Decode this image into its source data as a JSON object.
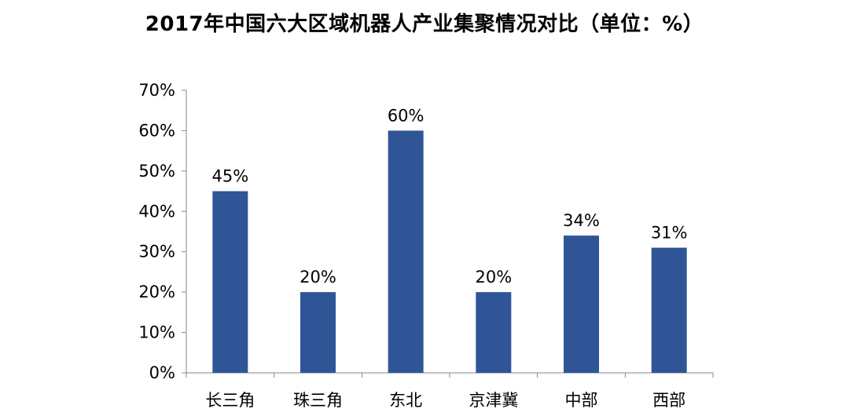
{
  "chart_data": {
    "type": "bar",
    "title": "2017年中国六大区域机器人产业集聚情况对比（单位：%）",
    "categories": [
      "长三角",
      "珠三角",
      "东北",
      "京津冀",
      "中部",
      "西部"
    ],
    "values": [
      45,
      20,
      60,
      20,
      34,
      31
    ],
    "data_labels": [
      "45%",
      "20%",
      "60%",
      "20%",
      "34%",
      "31%"
    ],
    "y_ticks": [
      "0%",
      "10%",
      "20%",
      "30%",
      "40%",
      "50%",
      "60%",
      "70%"
    ],
    "ylim": [
      0,
      70
    ],
    "grid": false,
    "legend": "none",
    "bar_color": "#2F5597",
    "axis_color": "#868686"
  }
}
